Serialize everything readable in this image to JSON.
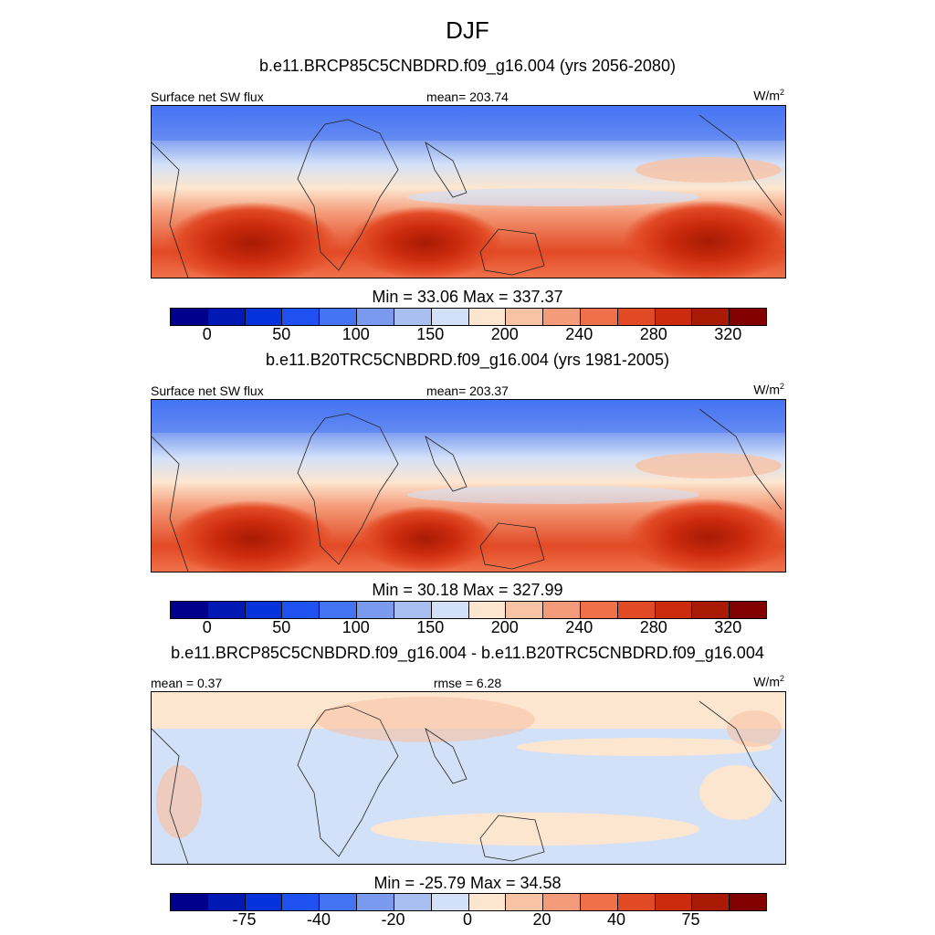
{
  "title": "DJF",
  "panels": [
    {
      "id": "future",
      "title": "b.e11.BRCP85C5CNBDRD.f09_g16.004 (yrs 2056-2080)",
      "left_label": "Surface net SW flux",
      "center_label": "mean= 203.74",
      "units": "W/m",
      "units_sup": "2",
      "minmax": "Min =  33.06 Max = 337.37",
      "kind": "abs"
    },
    {
      "id": "historical",
      "title": "b.e11.B20TRC5CNBDRD.f09_g16.004 (yrs 1981-2005)",
      "left_label": "Surface net SW flux",
      "center_label": "mean= 203.37",
      "units": "W/m",
      "units_sup": "2",
      "minmax": "Min =  30.18 Max = 327.99",
      "kind": "abs"
    },
    {
      "id": "difference",
      "title": "b.e11.BRCP85C5CNBDRD.f09_g16.004 - b.e11.B20TRC5CNBDRD.f09_g16.004",
      "left_label": "mean =   0.37",
      "center_label": "rmse =   6.28",
      "units": "W/m",
      "units_sup": "2",
      "minmax": "Min = -25.79 Max =  34.58",
      "kind": "diff"
    }
  ],
  "colorbar_abs": {
    "colors": [
      "#00008c",
      "#0018b4",
      "#0433dc",
      "#1f50f0",
      "#4474f4",
      "#7a9af0",
      "#a9bff2",
      "#d3e1f8",
      "#fde6cf",
      "#f8c2a5",
      "#f49b79",
      "#ef714b",
      "#e24a25",
      "#cc2b0d",
      "#a81a04",
      "#830000"
    ],
    "labels": [
      "0",
      "50",
      "100",
      "150",
      "200",
      "240",
      "280",
      "320"
    ]
  },
  "colorbar_diff": {
    "colors": [
      "#00008c",
      "#0018b4",
      "#0433dc",
      "#1f50f0",
      "#4474f4",
      "#7a9af0",
      "#a9bff2",
      "#d3e1f8",
      "#fde6cf",
      "#f8c2a5",
      "#f49b79",
      "#ef714b",
      "#e24a25",
      "#cc2b0d",
      "#a81a04",
      "#830000"
    ],
    "labels": [
      "-75",
      "-40",
      "-20",
      "0",
      "20",
      "40",
      "75"
    ]
  }
}
